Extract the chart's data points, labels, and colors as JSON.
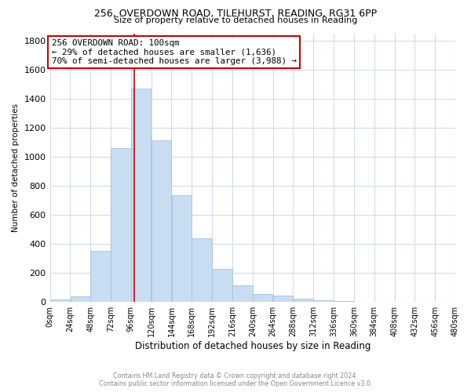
{
  "title_line1": "256, OVERDOWN ROAD, TILEHURST, READING, RG31 6PP",
  "title_line2": "Size of property relative to detached houses in Reading",
  "xlabel": "Distribution of detached houses by size in Reading",
  "ylabel": "Number of detached properties",
  "bar_color": "#c9ddf2",
  "bar_edge_color": "#a8c0de",
  "bin_edges": [
    0,
    24,
    48,
    72,
    96,
    120,
    144,
    168,
    192,
    216,
    240,
    264,
    288,
    312,
    336,
    360,
    384,
    408,
    432,
    456,
    480
  ],
  "bar_heights": [
    15,
    35,
    350,
    1060,
    1470,
    1110,
    735,
    435,
    225,
    110,
    55,
    45,
    20,
    12,
    2,
    0,
    0,
    0,
    0,
    0
  ],
  "tick_labels": [
    "0sqm",
    "24sqm",
    "48sqm",
    "72sqm",
    "96sqm",
    "120sqm",
    "144sqm",
    "168sqm",
    "192sqm",
    "216sqm",
    "240sqm",
    "264sqm",
    "288sqm",
    "312sqm",
    "336sqm",
    "360sqm",
    "384sqm",
    "408sqm",
    "432sqm",
    "456sqm",
    "480sqm"
  ],
  "ylim": [
    0,
    1850
  ],
  "yticks": [
    0,
    200,
    400,
    600,
    800,
    1000,
    1200,
    1400,
    1600,
    1800
  ],
  "vline_x": 100,
  "vline_color": "#cc0000",
  "annotation_line1": "256 OVERDOWN ROAD: 100sqm",
  "annotation_line2": "← 29% of detached houses are smaller (1,636)",
  "annotation_line3": "70% of semi-detached houses are larger (3,988) →",
  "footer_line1": "Contains HM Land Registry data © Crown copyright and database right 2024.",
  "footer_line2": "Contains public sector information licensed under the Open Government Licence v3.0.",
  "bg_color": "#ffffff",
  "grid_color": "#d0dcea"
}
